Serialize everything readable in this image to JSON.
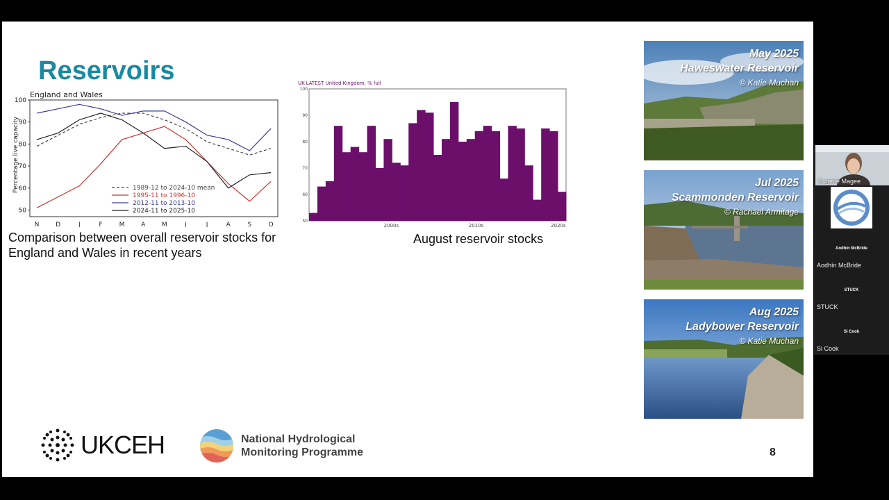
{
  "slide": {
    "title": "Reservoirs",
    "caption_left": "Comparison between overall reservoir stocks for England and Wales in recent years",
    "caption_right": "August reservoir stocks",
    "page_number": "8",
    "logo_ukceh": "UKCEH",
    "logo_nhmp_line1": "National Hydrological",
    "logo_nhmp_line2": "Monitoring Programme"
  },
  "photos": [
    {
      "date": "May 2025",
      "name": "Haweswater Reservoir",
      "credit": "© Katie Muchan"
    },
    {
      "date": "Jul 2025",
      "name": "Scammonden Reservoir",
      "credit": "© Rachael Armitage"
    },
    {
      "date": "Aug 2025",
      "name": "Ladybower Reservoir",
      "credit": "© Katie Muchan"
    }
  ],
  "participants": [
    {
      "name": "Eugene Magee",
      "label": ""
    },
    {
      "name": "Aodhín McBride",
      "label": "Aodhín McBride"
    },
    {
      "name": "STUCK",
      "label": "STUCK"
    },
    {
      "name": "Si Cook",
      "label": "Si Cook"
    }
  ],
  "chart_data": [
    {
      "type": "line",
      "title": "England and Wales",
      "ylabel": "Percentage live capacity",
      "categories": [
        "N",
        "D",
        "J",
        "F",
        "M",
        "A",
        "M",
        "J",
        "J",
        "A",
        "S",
        "O"
      ],
      "ylim": [
        47,
        100
      ],
      "yticks": [
        50,
        60,
        70,
        80,
        90,
        100
      ],
      "legend_position": "bottom-center",
      "series": [
        {
          "name": "1989-12 to 2024-10 mean",
          "color": "#444444",
          "dash": true,
          "values": [
            79,
            84,
            89,
            92,
            94,
            94,
            91,
            87,
            81,
            78,
            75,
            78
          ]
        },
        {
          "name": "1995-11 to 1996-10",
          "color": "#cc3333",
          "values": [
            51,
            56,
            61,
            71,
            82,
            85,
            88,
            82,
            72,
            62,
            54,
            63
          ]
        },
        {
          "name": "2012-11 to 2013-10",
          "color": "#3a3a9a",
          "values": [
            94,
            96,
            98,
            96,
            93,
            95,
            95,
            90,
            84,
            82,
            77,
            87
          ]
        },
        {
          "name": "2024-11 to 2025-10",
          "color": "#222222",
          "values": [
            82,
            85,
            91,
            94,
            91,
            85,
            78,
            79,
            72,
            60,
            66,
            67
          ]
        }
      ]
    },
    {
      "type": "bar",
      "title": "UK-LATEST United Kingdom, % full",
      "color": "#6b0f6b",
      "ylim": [
        50,
        100
      ],
      "yticks": [
        50,
        60,
        70,
        80,
        90,
        100
      ],
      "xtick_labels": [
        "2000s",
        "2010s",
        "2020s"
      ],
      "values": [
        53,
        63,
        65,
        86,
        76,
        78,
        76,
        86,
        70,
        81,
        72,
        71,
        87,
        92,
        91,
        75,
        81,
        95,
        80,
        81,
        84,
        86,
        84,
        66,
        86,
        85,
        71,
        58,
        85,
        84,
        61
      ]
    }
  ]
}
